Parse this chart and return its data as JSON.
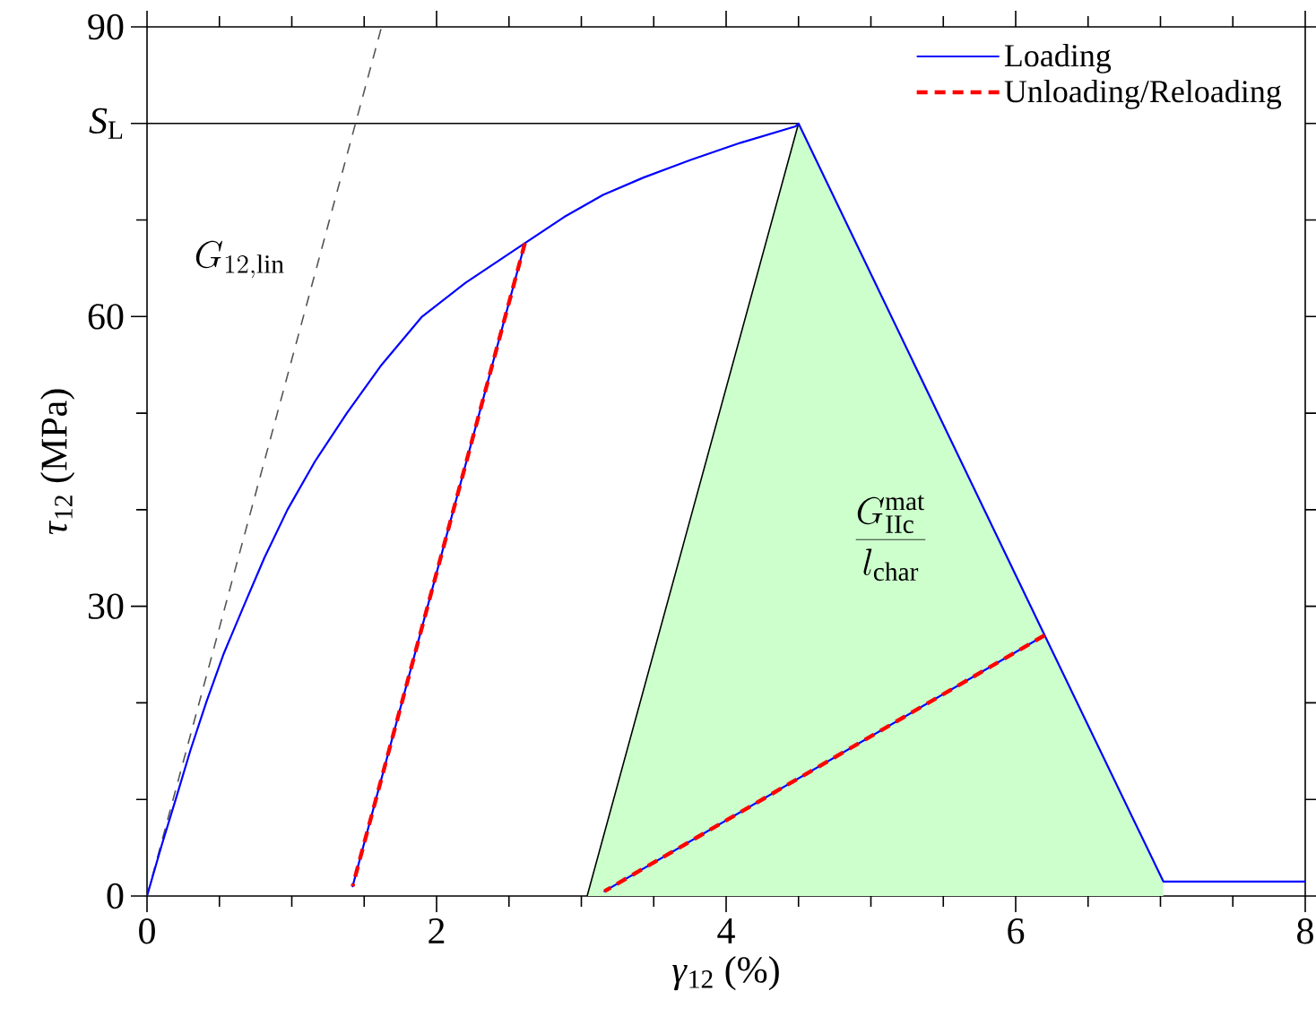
{
  "chart_data": {
    "type": "line",
    "xlabel": "*γ*$_{12}$ (%)",
    "ylabel": "*τ*$_{12}$ (MPa)",
    "xlim": [
      0,
      8
    ],
    "ylim": [
      0,
      90
    ],
    "xticks": [
      0,
      {
        "value": 0.5,
        "label": null
      },
      {
        "value": 1,
        "label": null
      },
      {
        "value": 1.5,
        "label": null
      },
      2,
      {
        "value": 2.5,
        "label": null
      },
      {
        "value": 3,
        "label": null
      },
      {
        "value": 3.5,
        "label": null
      },
      4,
      {
        "value": 4.5,
        "label": null
      },
      {
        "value": 5,
        "label": null
      },
      {
        "value": 5.5,
        "label": null
      },
      6,
      {
        "value": 6.5,
        "label": null
      },
      {
        "value": 7,
        "label": null
      },
      {
        "value": 7.5,
        "label": null
      },
      8
    ],
    "yticks": [
      0,
      {
        "value": 10,
        "label": null
      },
      {
        "value": 20,
        "label": null
      },
      30,
      {
        "value": 40,
        "label": null
      },
      {
        "value": 50,
        "label": null
      },
      60,
      {
        "value": 70,
        "label": null
      },
      {
        "value": 80,
        "label": "*S*$_{L}$"
      },
      90
    ],
    "legend": "top right",
    "series": [
      {
        "type": "area",
        "color": "#ccffcc",
        "x": [
          3.04,
          4.5,
          7.02
        ],
        "values": [
          0,
          80,
          1.5
        ]
      },
      {
        "color": "#000000",
        "x": [
          0,
          4.5,
          3.04
        ],
        "values": [
          80,
          80,
          0
        ]
      },
      {
        "color": "#555555",
        "line_style": "dashed",
        "x": [
          0,
          1.62
        ],
        "values": [
          0,
          90
        ]
      },
      {
        "name": "Loading",
        "color": "#0000ff",
        "x": [
          0,
          0.1,
          0.2,
          0.3,
          0.41,
          0.53,
          0.67,
          0.81,
          0.97,
          1.16,
          1.38,
          1.62,
          1.9,
          2.2,
          2.61,
          1.42,
          2.61,
          2.88,
          3.15,
          3.43,
          3.75,
          4.1,
          4.48,
          4.5,
          6.2,
          3.16,
          6.2,
          7.02,
          8
        ],
        "values": [
          0,
          5.2,
          10.1,
          15.1,
          20.1,
          25.1,
          30.1,
          35,
          40,
          45,
          50,
          55,
          60,
          63.5,
          67.6,
          1,
          67.6,
          70.3,
          72.6,
          74.4,
          76.2,
          78,
          79.7,
          80,
          27,
          0.5,
          27,
          1.5,
          1.5
        ]
      },
      {
        "name": "Unloading/Reloading",
        "color": "#ff0000",
        "line_style": "dashed",
        "x": [
          2.61,
          1.42,
          null,
          6.2,
          3.16
        ],
        "values": [
          67.6,
          1,
          null,
          27,
          0.5
        ]
      }
    ],
    "annotations": [
      "G_{12,\\mathrm{lin}}",
      "\\frac{G_{\\mathrm{IIc}}^{\\mathrm{mat}}}{l_{\\mathrm{char}}}"
    ]
  }
}
